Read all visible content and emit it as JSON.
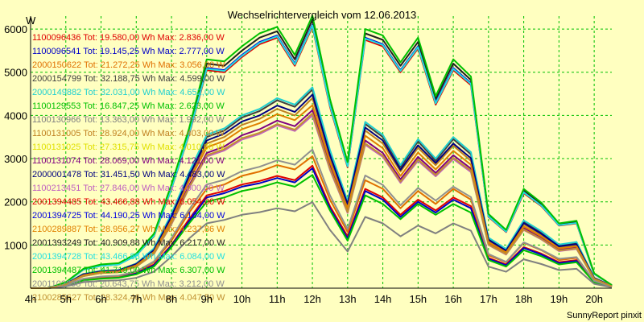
{
  "chart_data": {
    "type": "line",
    "title": "Wechselrichtervergleich vom 12.06.2013",
    "ylabel": "W",
    "footer": "SunnyReport pinxit",
    "x_ticks": [
      "4h",
      "5h",
      "6h",
      "7h",
      "8h",
      "9h",
      "10h",
      "11h",
      "12h",
      "13h",
      "14h",
      "15h",
      "16h",
      "17h",
      "18h",
      "19h",
      "20h"
    ],
    "y_ticks": [
      1000,
      2000,
      3000,
      4000,
      5000,
      6000
    ],
    "xlim": [
      4,
      20.5
    ],
    "ylim": [
      0,
      6300
    ],
    "grid": true,
    "x": [
      4.0,
      4.5,
      5.0,
      5.5,
      6.0,
      6.5,
      7.0,
      7.5,
      8.0,
      8.5,
      9.0,
      9.5,
      10.0,
      10.5,
      11.0,
      11.5,
      12.0,
      12.5,
      13.0,
      13.5,
      14.0,
      14.5,
      15.0,
      15.5,
      16.0,
      16.5,
      17.0,
      17.5,
      18.0,
      18.5,
      19.0,
      19.5,
      20.0,
      20.5
    ],
    "colors": {
      "background": "#ffffc0",
      "plot_background": "#ffffc0",
      "grid": "#00c000",
      "axis": "#000000"
    },
    "legend": [
      {
        "text": "1100096436 Tot: 19.580,00 Wh Max: 2.836,00 W",
        "color": "#e00000"
      },
      {
        "text": "1100096541 Tot: 19.145,25 Wh Max: 2.777,00 W",
        "color": "#0000c8"
      },
      {
        "text": "2000150622 Tot: 21.272,25 Wh Max: 3.056,00 W",
        "color": "#e07000"
      },
      {
        "text": "2000154799 Tot: 32.188,75 Wh Max: 4.599,00 W",
        "color": "#404040"
      },
      {
        "text": "2000149882 Tot: 32.031,00 Wh Max: 4.652,00 W",
        "color": "#20d0d0"
      },
      {
        "text": "1100129553 Tot: 16.847,25 Wh Max: 2.623,00 W",
        "color": "#00c000"
      },
      {
        "text": "1100130966 Tot: 13.363,00 Wh Max: 1.992,00 W",
        "color": "#808080"
      },
      {
        "text": "1100131005 Tot: 28.924,00 Wh Max: 4.403,00 W",
        "color": "#c08020"
      },
      {
        "text": "1100131025 Tot: 27.315,75 Wh Max: 4.010,00 W",
        "color": "#e0e000"
      },
      {
        "text": "1100131074 Tot: 28.069,00 Wh Max: 4.121,00 W",
        "color": "#800080"
      },
      {
        "text": "2000001478 Tot: 31.451,50 Wh Max: 4.483,00 W",
        "color": "#000080"
      },
      {
        "text": "1100213451 Tot: 27.846,00 Wh Max: 4.000,00 W",
        "color": "#c060c0"
      },
      {
        "text": "2001394485 Tot: 43.466,88 Wh Max: 6.054,00 W",
        "color": "#e00000"
      },
      {
        "text": "2001394725 Tot: 44.190,25 Wh Max: 6.104,00 W",
        "color": "#0000e0"
      },
      {
        "text": "2100289887 Tot: 28.956,27 Wh Max: 4.237,86 W",
        "color": "#e08000"
      },
      {
        "text": "2001393249 Tot: 40.909,88 Wh Max: 6.217,00 W",
        "color": "#202020"
      },
      {
        "text": "2001394728 Tot: 43.466,88 Wh Max: 6.084,00 W",
        "color": "#20e0e0"
      },
      {
        "text": "2001394487 Tot: 41.719,00 Wh Max: 6.307,00 W",
        "color": "#00c000"
      },
      {
        "text": "2001102358 Tot: 20.643,75 Wh Max: 3.212,00 W",
        "color": "#909090"
      },
      {
        "text": "2100285627 Tot: 28.324,46 Wh Max: 4.047,50 W",
        "color": "#c09030"
      }
    ],
    "series": [
      {
        "color": "#e00000",
        "values": [
          0,
          0,
          60,
          200,
          240,
          260,
          350,
          550,
          1000,
          1600,
          2150,
          2250,
          2400,
          2480,
          2600,
          2500,
          2836,
          1900,
          1200,
          2300,
          2100,
          1700,
          2050,
          1800,
          2100,
          1900,
          700,
          550,
          950,
          800,
          600,
          650,
          150,
          40
        ]
      },
      {
        "color": "#0000c8",
        "values": [
          0,
          0,
          60,
          190,
          230,
          250,
          340,
          530,
          980,
          1550,
          2100,
          2200,
          2350,
          2430,
          2550,
          2450,
          2777,
          1850,
          1150,
          2250,
          2050,
          1650,
          2000,
          1750,
          2050,
          1850,
          680,
          530,
          930,
          780,
          580,
          630,
          140,
          40
        ]
      },
      {
        "color": "#e07000",
        "values": [
          0,
          0,
          70,
          210,
          260,
          280,
          380,
          600,
          1100,
          1750,
          2300,
          2400,
          2600,
          2700,
          2850,
          2750,
          3056,
          2050,
          1300,
          2500,
          2300,
          1850,
          2250,
          1950,
          2300,
          2050,
          760,
          600,
          1050,
          880,
          650,
          700,
          160,
          40
        ]
      },
      {
        "color": "#404040",
        "values": [
          0,
          0,
          100,
          330,
          400,
          420,
          570,
          900,
          1700,
          2650,
          3500,
          3650,
          3950,
          4100,
          4350,
          4200,
          4599,
          3150,
          2000,
          3800,
          3500,
          2800,
          3400,
          2950,
          3450,
          3100,
          1150,
          900,
          1550,
          1300,
          1000,
          1050,
          240,
          50
        ]
      },
      {
        "color": "#20d0d0",
        "values": [
          0,
          0,
          100,
          330,
          400,
          420,
          570,
          920,
          1720,
          2680,
          3550,
          3700,
          4000,
          4150,
          4400,
          4250,
          4652,
          3200,
          2020,
          3850,
          3550,
          2850,
          3450,
          3000,
          3500,
          3150,
          1170,
          910,
          1570,
          1320,
          1010,
          1070,
          240,
          50
        ]
      },
      {
        "color": "#00c000",
        "values": [
          0,
          0,
          60,
          180,
          220,
          240,
          320,
          500,
          950,
          1500,
          2000,
          2100,
          2250,
          2330,
          2450,
          2350,
          2623,
          1800,
          1100,
          2150,
          1950,
          1600,
          1950,
          1700,
          1950,
          1750,
          650,
          500,
          880,
          740,
          550,
          600,
          130,
          30
        ]
      },
      {
        "color": "#808080",
        "values": [
          0,
          0,
          40,
          140,
          170,
          180,
          240,
          380,
          730,
          1150,
          1500,
          1580,
          1700,
          1760,
          1850,
          1780,
          1992,
          1350,
          850,
          1650,
          1500,
          1200,
          1450,
          1270,
          1500,
          1330,
          500,
          380,
          670,
          560,
          420,
          450,
          100,
          20
        ]
      },
      {
        "color": "#c08020",
        "values": [
          0,
          0,
          90,
          310,
          380,
          400,
          540,
          860,
          1620,
          2550,
          3350,
          3500,
          3780,
          3920,
          4150,
          4000,
          4403,
          3000,
          1900,
          3650,
          3350,
          2700,
          3250,
          2850,
          3300,
          2950,
          1100,
          860,
          1480,
          1240,
          950,
          1000,
          230,
          50
        ]
      },
      {
        "color": "#e0e000",
        "values": [
          0,
          0,
          85,
          280,
          350,
          370,
          500,
          790,
          1480,
          2320,
          3050,
          3200,
          3450,
          3580,
          3780,
          3650,
          4010,
          2750,
          1750,
          3330,
          3050,
          2450,
          2960,
          2600,
          3000,
          2700,
          1000,
          780,
          1350,
          1130,
          870,
          920,
          210,
          45
        ]
      },
      {
        "color": "#800080",
        "values": [
          0,
          0,
          85,
          290,
          360,
          380,
          510,
          810,
          1520,
          2380,
          3130,
          3280,
          3540,
          3680,
          3880,
          3750,
          4121,
          2830,
          1790,
          3420,
          3130,
          2520,
          3040,
          2670,
          3080,
          2770,
          1030,
          800,
          1390,
          1160,
          890,
          940,
          215,
          45
        ]
      },
      {
        "color": "#000080",
        "values": [
          0,
          0,
          95,
          320,
          390,
          410,
          560,
          880,
          1660,
          2600,
          3420,
          3580,
          3860,
          4000,
          4230,
          4080,
          4483,
          3080,
          1950,
          3720,
          3420,
          2740,
          3310,
          2900,
          3350,
          3010,
          1120,
          870,
          1510,
          1260,
          970,
          1020,
          235,
          50
        ]
      },
      {
        "color": "#c060c0",
        "values": [
          0,
          0,
          85,
          280,
          350,
          370,
          500,
          790,
          1480,
          2320,
          3050,
          3190,
          3440,
          3570,
          3770,
          3640,
          4000,
          2740,
          1740,
          3320,
          3040,
          2440,
          2950,
          2590,
          2990,
          2690,
          1000,
          780,
          1350,
          1130,
          860,
          910,
          210,
          45
        ]
      },
      {
        "color": "#e00000",
        "values": [
          0,
          0,
          130,
          430,
          520,
          550,
          760,
          1200,
          2300,
          3550,
          5050,
          5000,
          5350,
          5650,
          5800,
          5150,
          6054,
          4200,
          2800,
          5750,
          5600,
          5000,
          5550,
          4250,
          5050,
          4700,
          1650,
          1300,
          2200,
          1900,
          1450,
          1500,
          330,
          70
        ]
      },
      {
        "color": "#0000e0",
        "values": [
          0,
          0,
          130,
          430,
          520,
          550,
          760,
          1220,
          2320,
          3580,
          5100,
          5050,
          5400,
          5700,
          5850,
          5200,
          6104,
          4250,
          2830,
          5800,
          5650,
          5050,
          5600,
          4300,
          5100,
          4750,
          1670,
          1310,
          2230,
          1920,
          1460,
          1520,
          330,
          70
        ]
      },
      {
        "color": "#e08000",
        "values": [
          0,
          0,
          90,
          300,
          370,
          390,
          530,
          840,
          1580,
          2480,
          3260,
          3410,
          3680,
          3820,
          4030,
          3890,
          4237,
          2920,
          1850,
          3530,
          3240,
          2600,
          3140,
          2750,
          3180,
          2860,
          1060,
          830,
          1430,
          1200,
          920,
          970,
          220,
          45
        ]
      },
      {
        "color": "#202020",
        "values": [
          0,
          0,
          135,
          440,
          540,
          570,
          780,
          1240,
          2380,
          3650,
          5200,
          5150,
          5500,
          5800,
          5950,
          5300,
          6217,
          4300,
          2870,
          5900,
          5750,
          5150,
          5700,
          4380,
          5200,
          4820,
          1700,
          1330,
          2260,
          1950,
          1480,
          1540,
          340,
          70
        ]
      },
      {
        "color": "#20e0e0",
        "values": [
          0,
          0,
          130,
          430,
          520,
          550,
          760,
          1210,
          2310,
          3570,
          5080,
          5030,
          5380,
          5680,
          5830,
          5180,
          6084,
          4230,
          2820,
          5780,
          5630,
          5030,
          5580,
          4280,
          5080,
          4730,
          1660,
          1310,
          2220,
          1910,
          1460,
          1510,
          330,
          70
        ]
      },
      {
        "color": "#00c000",
        "values": [
          0,
          0,
          140,
          450,
          550,
          580,
          800,
          1260,
          2400,
          3700,
          5300,
          5250,
          5600,
          5900,
          6050,
          5400,
          6307,
          4380,
          2920,
          6000,
          5850,
          5230,
          5800,
          4450,
          5300,
          4900,
          1720,
          1350,
          2300,
          1980,
          1500,
          1560,
          345,
          70
        ]
      },
      {
        "color": "#909090",
        "values": [
          0,
          0,
          65,
          220,
          270,
          290,
          390,
          620,
          1160,
          1820,
          2400,
          2510,
          2710,
          2810,
          2960,
          2860,
          3212,
          2150,
          1370,
          2610,
          2390,
          1920,
          2320,
          2030,
          2350,
          2110,
          790,
          610,
          1060,
          890,
          680,
          720,
          165,
          35
        ]
      },
      {
        "color": "#c09030",
        "values": [
          0,
          0,
          85,
          280,
          350,
          370,
          500,
          800,
          1500,
          2340,
          3080,
          3220,
          3470,
          3600,
          3800,
          3670,
          4047,
          2770,
          1760,
          3350,
          3070,
          2470,
          2980,
          2620,
          3020,
          2720,
          1010,
          790,
          1360,
          1140,
          870,
          920,
          210,
          45
        ]
      }
    ]
  }
}
